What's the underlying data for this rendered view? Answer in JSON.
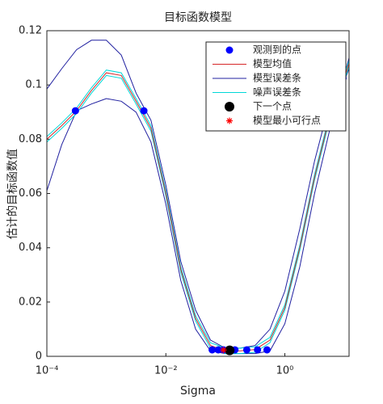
{
  "chart_data": {
    "type": "line",
    "title": "目标函数模型",
    "x_label": "Sigma",
    "y_label": "估计的目标函数值",
    "xscale": "log",
    "xlim": [
      0.0001,
      12
    ],
    "ylim": [
      0,
      0.12
    ],
    "xticks": [
      {
        "value": 0.0001,
        "label": "10⁻⁴"
      },
      {
        "value": 0.01,
        "label": "10⁻²"
      },
      {
        "value": 1,
        "label": "10⁰"
      }
    ],
    "yticks": [
      0,
      0.02,
      0.04,
      0.06,
      0.08,
      0.1,
      0.12
    ],
    "legend": "top-right",
    "x": [
      0.0001,
      0.000178,
      0.000316,
      0.000562,
      0.001,
      0.00178,
      0.00316,
      0.00562,
      0.01,
      0.0178,
      0.0316,
      0.0562,
      0.1,
      0.178,
      0.316,
      0.562,
      1,
      1.78,
      3.16,
      5.62,
      10,
      12
    ],
    "series": [
      {
        "name": "观测到的点",
        "kind": "points",
        "color": "#0000ff",
        "x": [
          0.000302,
          0.00427,
          0.06,
          0.076,
          0.093,
          0.115,
          0.145,
          0.229,
          0.347,
          0.501,
          9.5
        ],
        "values": [
          0.0905,
          0.0905,
          0.0024,
          0.0024,
          0.0024,
          0.0024,
          0.0024,
          0.0024,
          0.0024,
          0.0024,
          0.1025
        ]
      },
      {
        "name": "模型均值",
        "kind": "line",
        "color": "#d62728",
        "values": [
          0.08,
          0.085,
          0.0905,
          0.098,
          0.1045,
          0.1035,
          0.094,
          0.084,
          0.06,
          0.032,
          0.014,
          0.004,
          0.002,
          0.002,
          0.0025,
          0.006,
          0.018,
          0.04,
          0.066,
          0.088,
          0.1025,
          0.108
        ]
      },
      {
        "name": "模型误差条",
        "kind": "band",
        "color": "#2020a0",
        "upper": [
          0.0985,
          0.106,
          0.113,
          0.1165,
          0.1165,
          0.111,
          0.097,
          0.087,
          0.063,
          0.035,
          0.017,
          0.006,
          0.003,
          0.003,
          0.004,
          0.01,
          0.024,
          0.047,
          0.072,
          0.093,
          0.1035,
          0.11
        ],
        "lower": [
          0.061,
          0.078,
          0.0905,
          0.093,
          0.095,
          0.094,
          0.09,
          0.079,
          0.056,
          0.028,
          0.01,
          0.002,
          0.001,
          0.001,
          0.001,
          0.002,
          0.012,
          0.033,
          0.06,
          0.083,
          0.1015,
          0.106
        ]
      },
      {
        "name": "噪声误差条",
        "kind": "band",
        "color": "#00d8d8",
        "upper": [
          0.081,
          0.086,
          0.0915,
          0.099,
          0.1055,
          0.1045,
          0.095,
          0.085,
          0.061,
          0.033,
          0.015,
          0.005,
          0.003,
          0.003,
          0.0035,
          0.007,
          0.019,
          0.041,
          0.067,
          0.089,
          0.1035,
          0.109
        ],
        "lower": [
          0.079,
          0.084,
          0.0895,
          0.097,
          0.1035,
          0.1025,
          0.093,
          0.083,
          0.059,
          0.031,
          0.013,
          0.003,
          0.001,
          0.001,
          0.0015,
          0.005,
          0.017,
          0.039,
          0.065,
          0.087,
          0.1015,
          0.107
        ]
      },
      {
        "name": "下一个点",
        "kind": "points",
        "color": "#000000",
        "x": [
          0.118
        ],
        "values": [
          0.0022
        ]
      },
      {
        "name": "模型最小可行点",
        "kind": "star",
        "color": "#ff0000",
        "x": [
          0.093
        ],
        "values": [
          0.0023
        ]
      }
    ]
  }
}
